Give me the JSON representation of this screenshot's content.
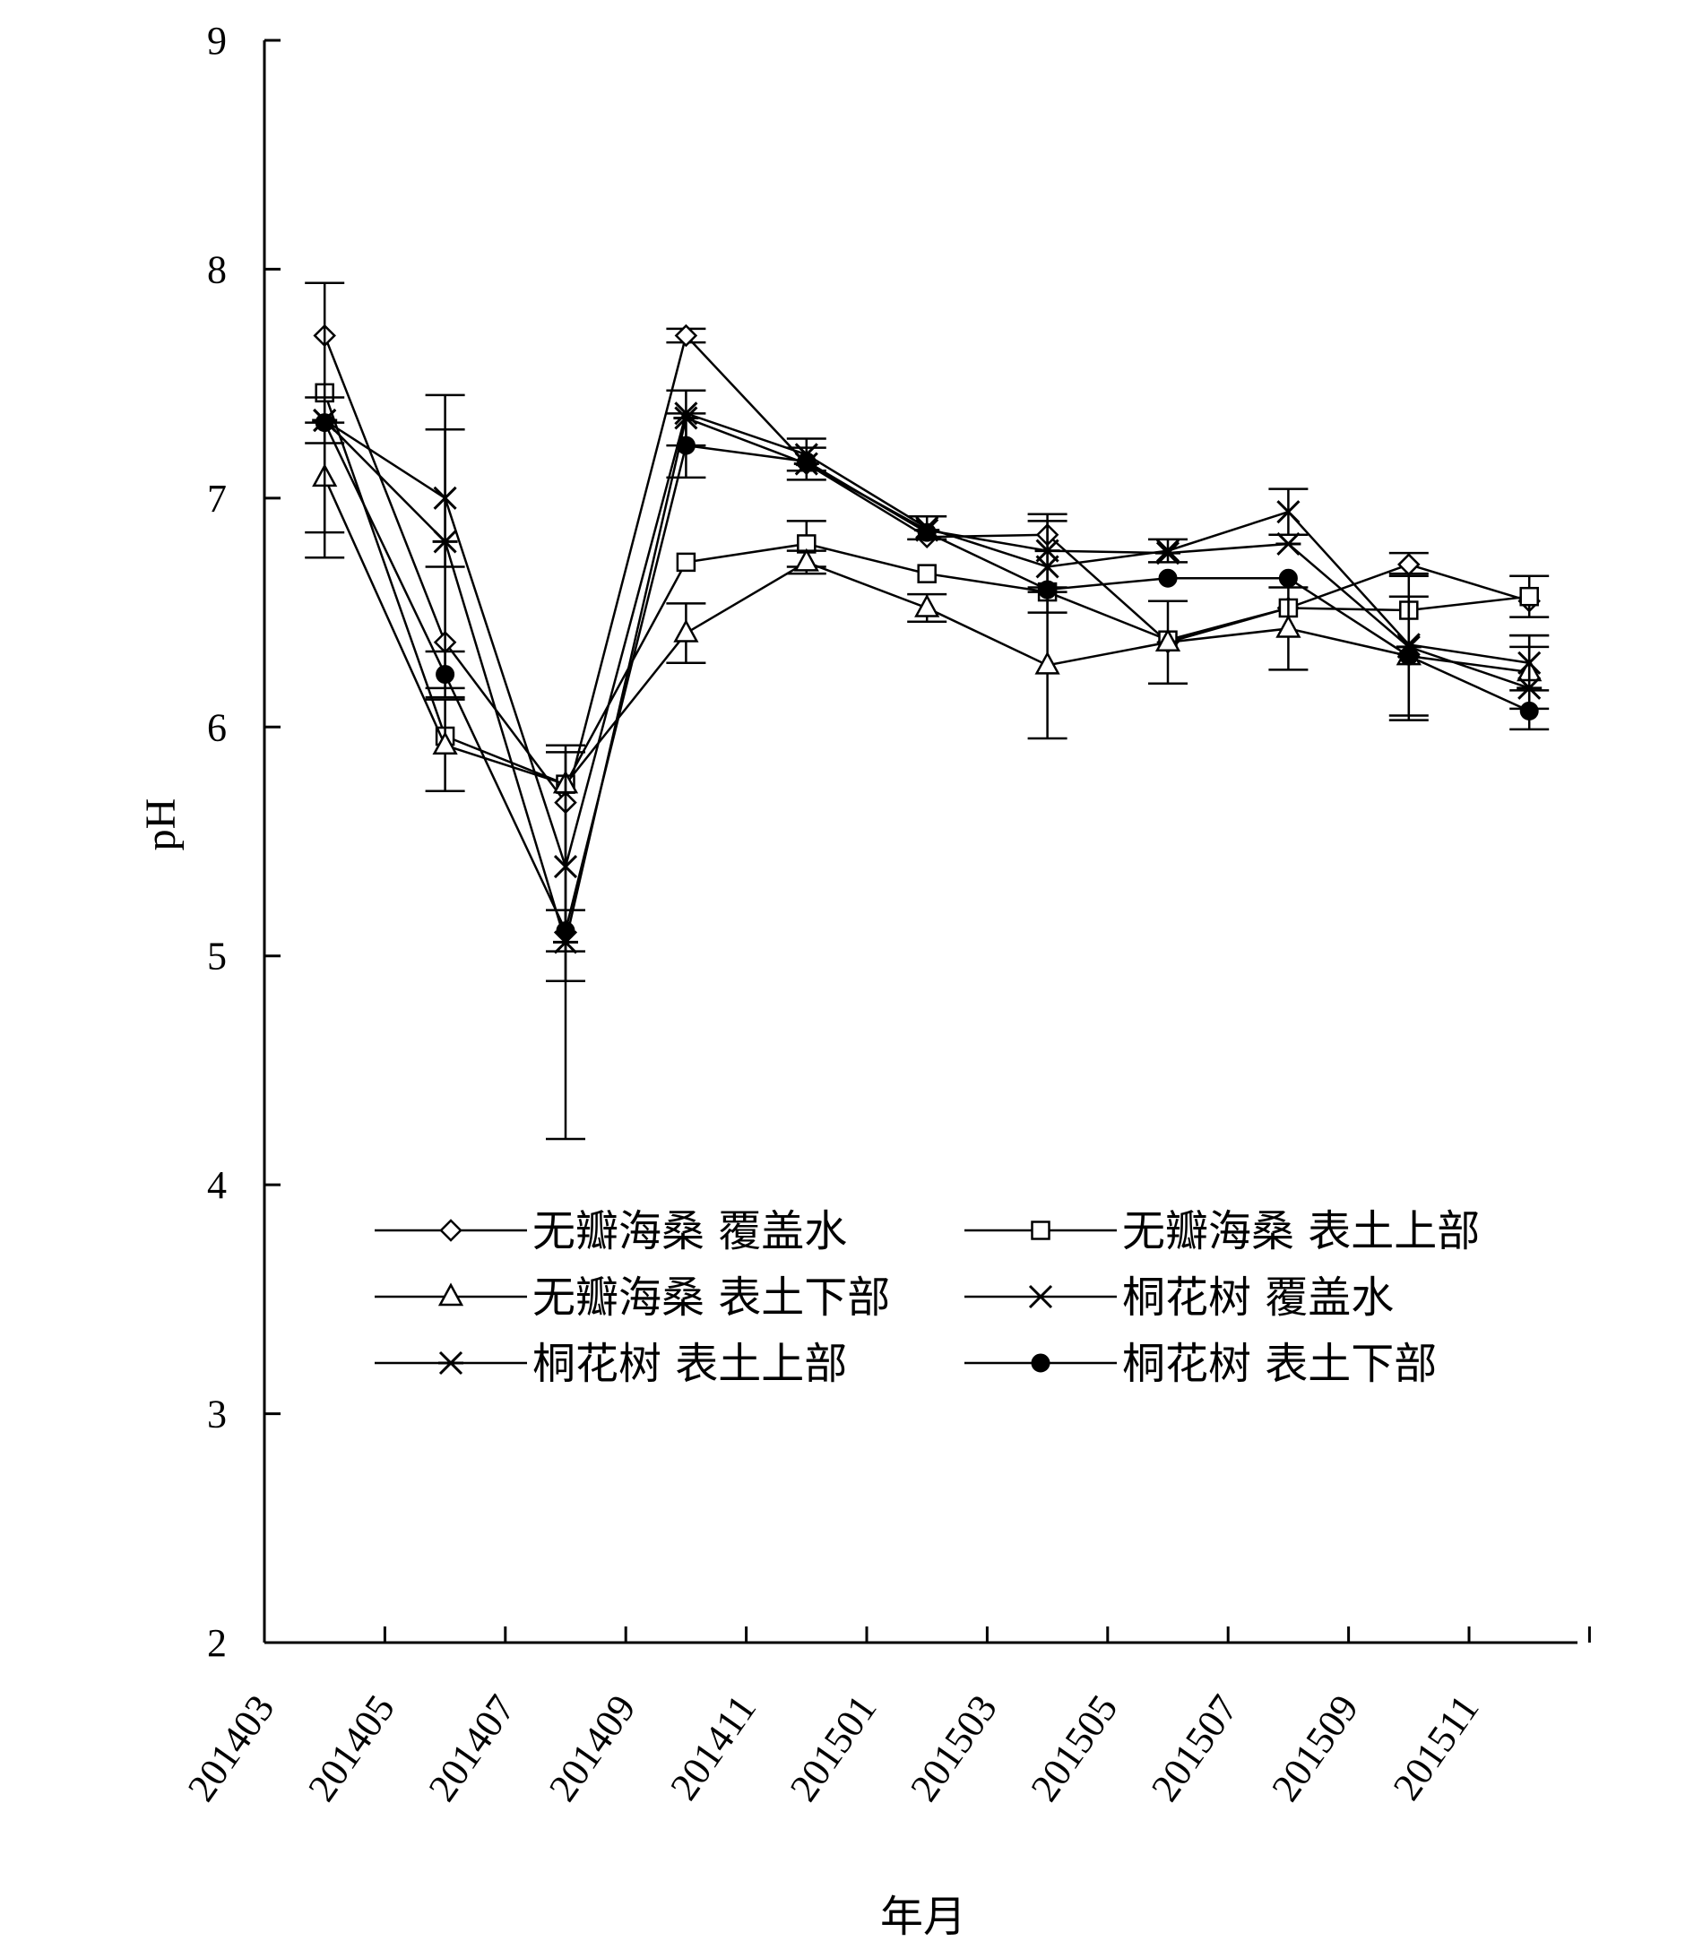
{
  "chart_data": {
    "type": "line",
    "title": "",
    "xlabel": "年月",
    "ylabel": "pH",
    "ylim": [
      2,
      9
    ],
    "yticks": [
      "2",
      "3",
      "4",
      "5",
      "6",
      "7",
      "8",
      "9"
    ],
    "categories": [
      "201403",
      "201405",
      "201407",
      "201409",
      "201411",
      "201501",
      "201503",
      "201505",
      "201507",
      "201509",
      "201511"
    ],
    "x": [
      201403.5,
      201405.5,
      201407.5,
      201409.5,
      201411.5,
      201501.5,
      201503.5,
      201505.5,
      201507.5,
      201509.5,
      201511.5
    ],
    "legend_position": "middle",
    "grid": false,
    "series": [
      {
        "name": "无瓣海桑 覆盖水",
        "marker": "diamond-open",
        "values": [
          7.71,
          6.37,
          5.67,
          7.71,
          7.15,
          6.83,
          6.84,
          6.37,
          6.52,
          6.71,
          6.55
        ],
        "errors": [
          0.0,
          0.0,
          0.0,
          0.03,
          0.0,
          0.0,
          0.0,
          0.0,
          0.0,
          0.05,
          0.0
        ]
      },
      {
        "name": "无瓣海桑 表土上部",
        "marker": "square-open",
        "values": [
          7.46,
          5.96,
          5.75,
          6.72,
          6.8,
          6.67,
          6.59,
          6.38,
          6.52,
          6.51,
          6.57
        ],
        "errors": [
          0.0,
          0.0,
          0.0,
          0.0,
          0.1,
          0.0,
          0.0,
          0.0,
          0.0,
          0.0,
          0.09
        ]
      },
      {
        "name": "无瓣海桑 表土下部",
        "marker": "triangle-open",
        "values": [
          7.09,
          5.92,
          5.75,
          6.41,
          6.72,
          6.52,
          6.27,
          6.37,
          6.43,
          6.31,
          6.24
        ],
        "errors": [
          0.24,
          0.2,
          0.0,
          0.13,
          0.05,
          0.06,
          0.32,
          0.18,
          0.18,
          0.26,
          0.16
        ]
      },
      {
        "name": "桐花树 覆盖水",
        "marker": "x",
        "values": [
          7.34,
          7.0,
          5.39,
          7.37,
          7.19,
          6.87,
          6.7,
          6.77,
          6.94,
          6.36,
          6.28
        ],
        "errors": [
          0.1,
          0.3,
          0.5,
          0.0,
          0.07,
          0.05,
          0.2,
          0.05,
          0.1,
          0.0,
          0.12
        ]
      },
      {
        "name": "桐花树 表土上部",
        "marker": "asterisk",
        "values": [
          7.34,
          6.81,
          5.06,
          7.35,
          7.15,
          6.86,
          6.77,
          6.76,
          6.8,
          6.35,
          6.17
        ],
        "errors": [
          0.6,
          0.64,
          0.86,
          0.12,
          0.07,
          0.0,
          0.16,
          0.0,
          0.0,
          0.32,
          0.18
        ]
      },
      {
        "name": "桐花树 表土下部",
        "marker": "circle-filled",
        "values": [
          7.33,
          6.23,
          5.11,
          7.23,
          7.16,
          6.85,
          6.6,
          6.65,
          6.65,
          6.31,
          6.07
        ],
        "errors": [
          0.0,
          0.1,
          0.09,
          0.14,
          0.0,
          0.0,
          0.0,
          0.0,
          0.0,
          0.0,
          0.0
        ]
      }
    ]
  }
}
